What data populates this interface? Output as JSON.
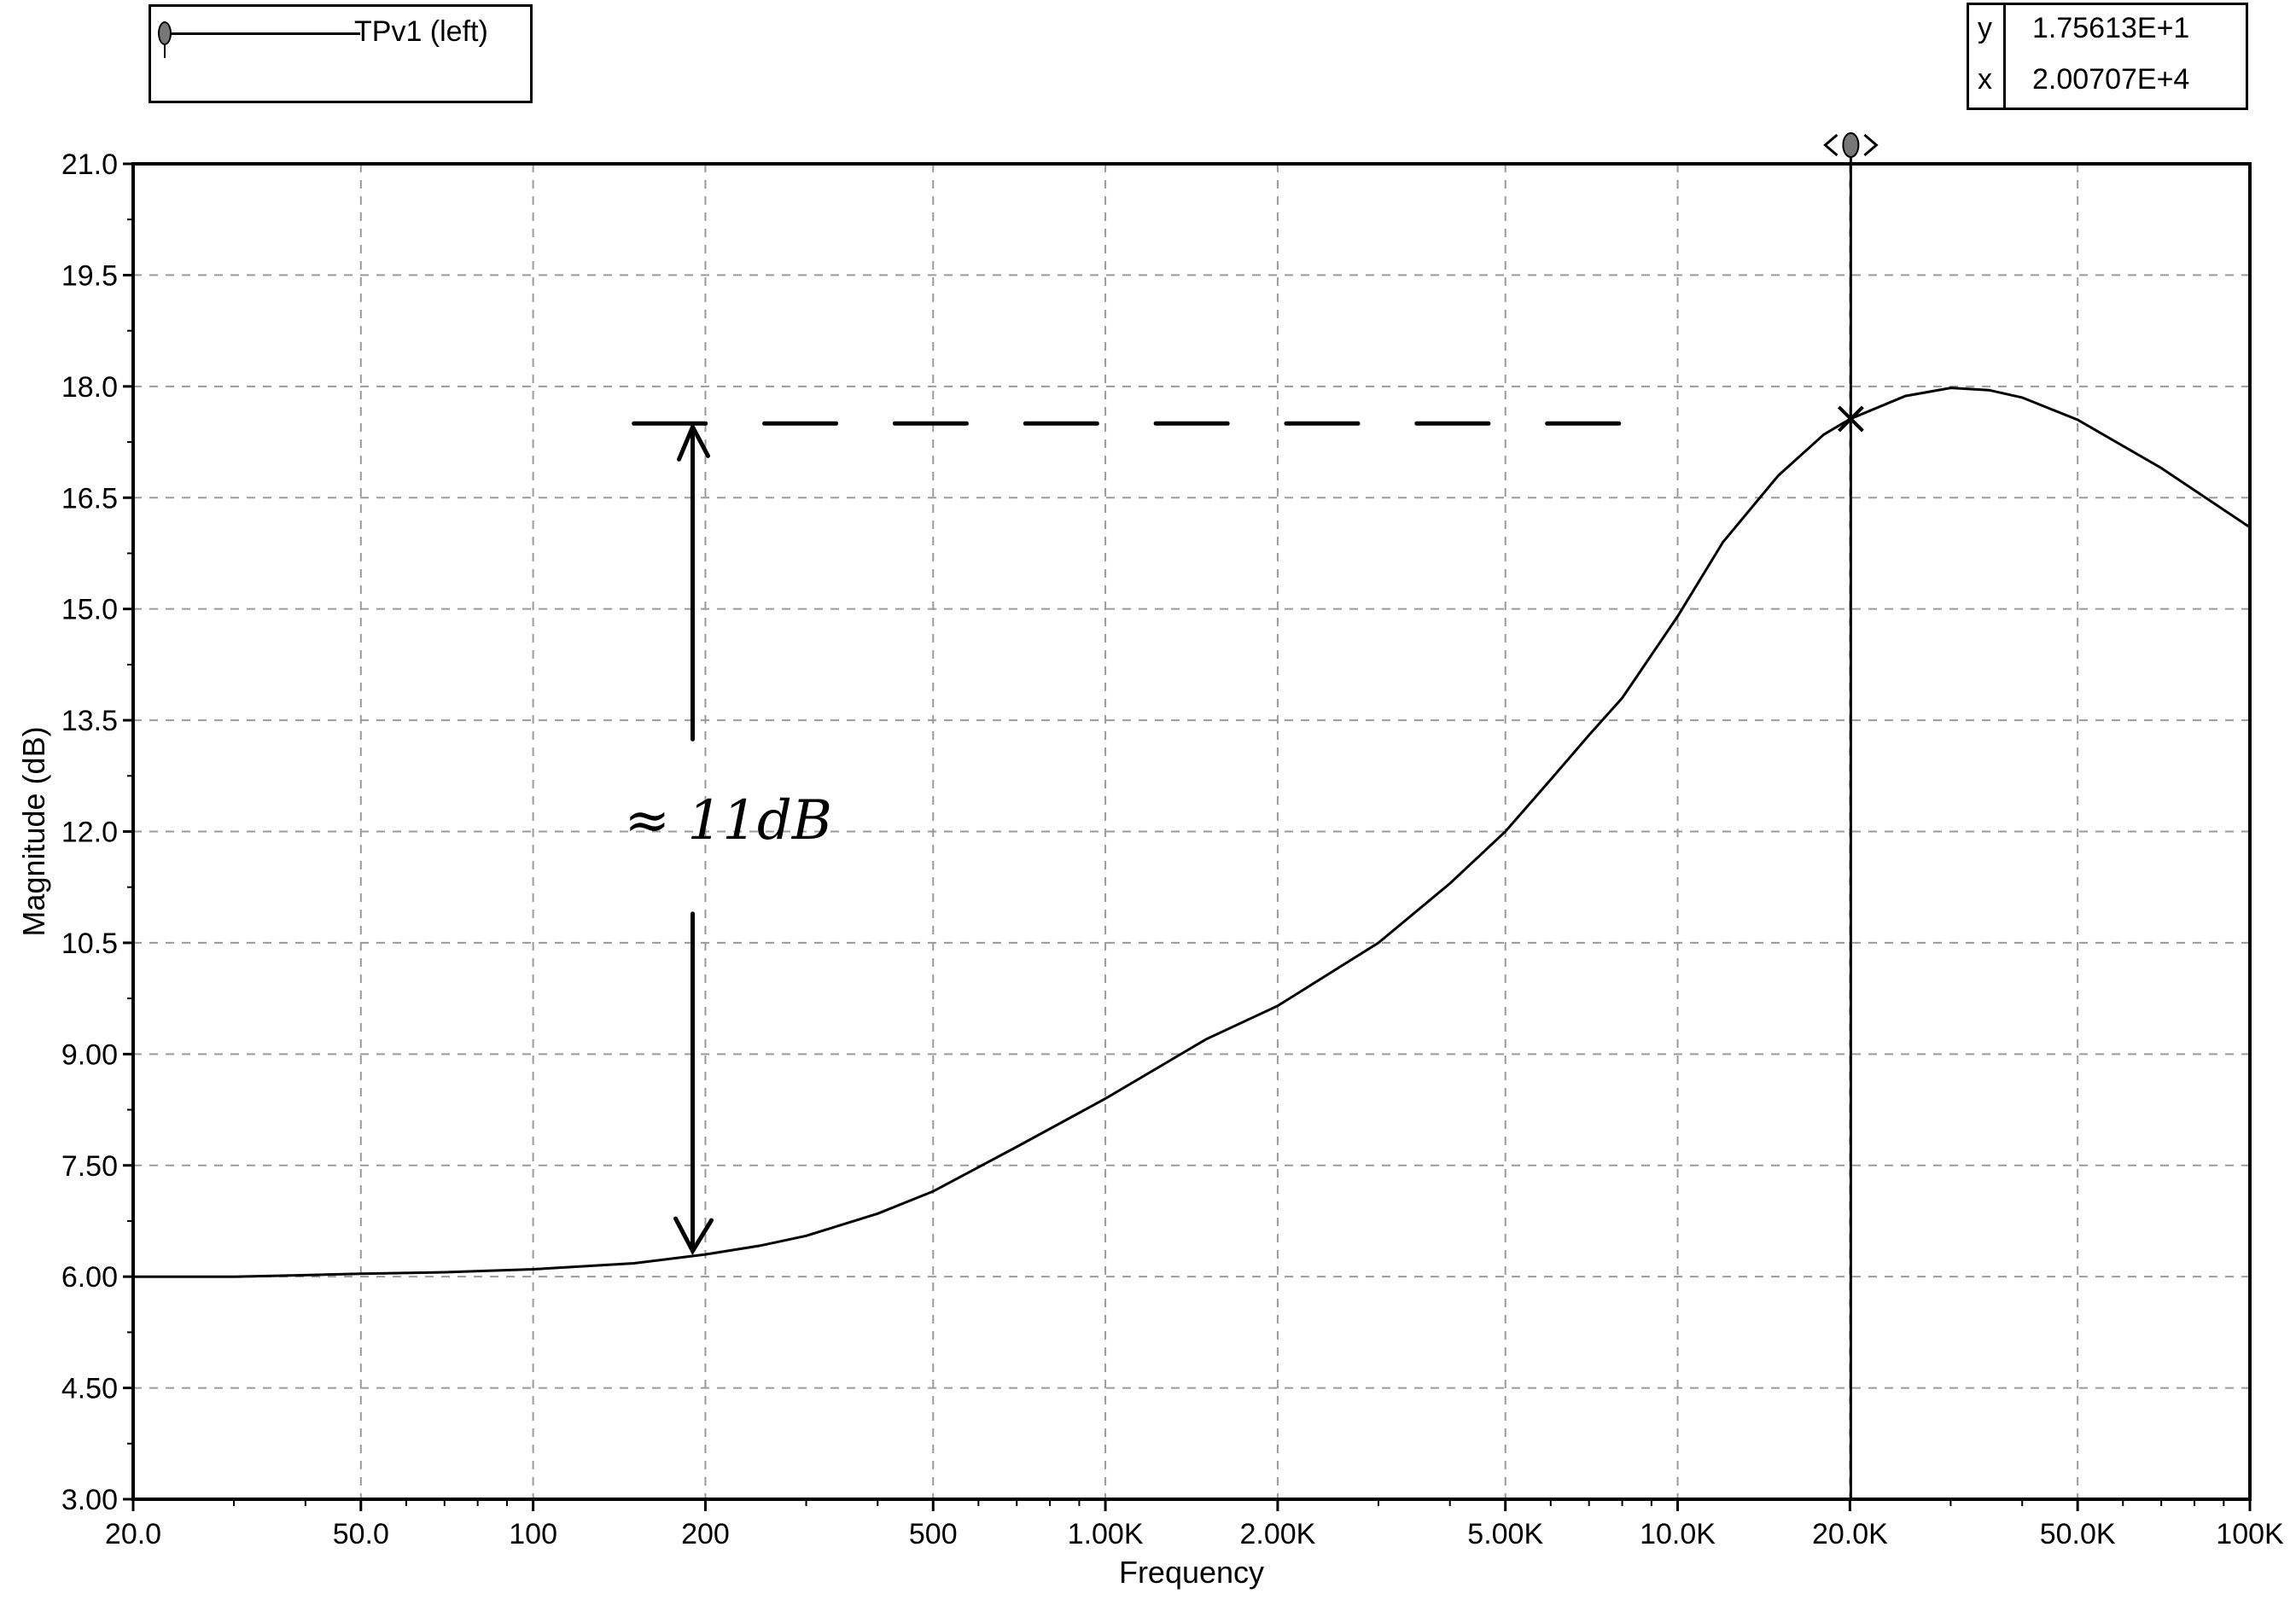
{
  "legend": {
    "label": "TPv1 (left)"
  },
  "readout": {
    "y_key": "y",
    "y_value": "1.75613E+1",
    "x_key": "x",
    "x_value": "2.00707E+4"
  },
  "annotation": {
    "text": "≈ 11dB"
  },
  "chart_data": {
    "type": "line",
    "title": "",
    "xlabel": "Frequency",
    "ylabel": "Magnitude  (dB)",
    "x_scale": "log",
    "xlim": [
      20,
      100000
    ],
    "ylim": [
      3.0,
      21.0
    ],
    "grid": true,
    "legend_position": "top-left",
    "x_ticks": [
      {
        "v": 20,
        "label": "20.0"
      },
      {
        "v": 50,
        "label": "50.0"
      },
      {
        "v": 100,
        "label": "100"
      },
      {
        "v": 200,
        "label": "200"
      },
      {
        "v": 500,
        "label": "500"
      },
      {
        "v": 1000,
        "label": "1.00K"
      },
      {
        "v": 2000,
        "label": "2.00K"
      },
      {
        "v": 5000,
        "label": "5.00K"
      },
      {
        "v": 10000,
        "label": "10.0K"
      },
      {
        "v": 20000,
        "label": "20.0K"
      },
      {
        "v": 50000,
        "label": "50.0K"
      },
      {
        "v": 100000,
        "label": "100K"
      }
    ],
    "y_ticks": [
      {
        "v": 21.0,
        "label": "21.0"
      },
      {
        "v": 19.5,
        "label": "19.5"
      },
      {
        "v": 18.0,
        "label": "18.0"
      },
      {
        "v": 16.5,
        "label": "16.5"
      },
      {
        "v": 15.0,
        "label": "15.0"
      },
      {
        "v": 13.5,
        "label": "13.5"
      },
      {
        "v": 12.0,
        "label": "12.0"
      },
      {
        "v": 10.5,
        "label": "10.5"
      },
      {
        "v": 9.0,
        "label": "9.00"
      },
      {
        "v": 7.5,
        "label": "7.50"
      },
      {
        "v": 6.0,
        "label": "6.00"
      },
      {
        "v": 4.5,
        "label": "4.50"
      },
      {
        "v": 3.0,
        "label": "3.00"
      }
    ],
    "series": [
      {
        "name": "TPv1 (left)",
        "x": [
          20,
          30,
          40,
          50,
          70,
          100,
          150,
          200,
          250,
          300,
          400,
          500,
          700,
          1000,
          1500,
          2000,
          3000,
          4000,
          5000,
          6000,
          7000,
          8000,
          10000,
          12000,
          15000,
          18000,
          20000,
          25000,
          30000,
          35000,
          40000,
          50000,
          70000,
          100000
        ],
        "y": [
          6.0,
          6.0,
          6.02,
          6.04,
          6.06,
          6.1,
          6.18,
          6.3,
          6.42,
          6.55,
          6.85,
          7.15,
          7.75,
          8.4,
          9.2,
          9.65,
          10.5,
          11.3,
          12.0,
          12.7,
          13.3,
          13.8,
          14.9,
          15.9,
          16.8,
          17.35,
          17.56,
          17.87,
          17.98,
          17.95,
          17.85,
          17.55,
          16.9,
          16.1
        ]
      }
    ],
    "cursor": {
      "x": 20070.7,
      "y": 17.5613
    },
    "reference_level": 17.5,
    "reference_start_x": 150,
    "reference_end_x": 10000,
    "bracket_x": 190,
    "bracket_low_y": 6.3,
    "bracket_high_y": 17.5
  }
}
